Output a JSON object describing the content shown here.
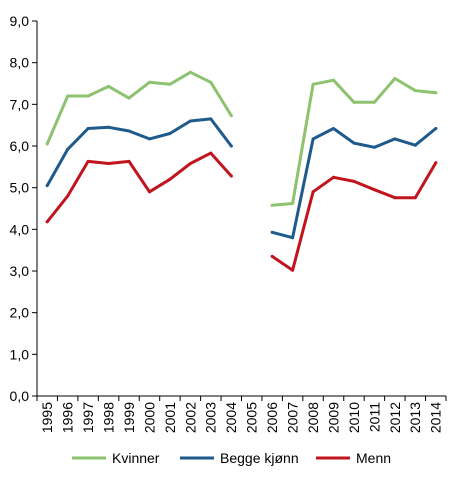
{
  "chart_data": {
    "type": "line",
    "x": [
      "1995",
      "1996",
      "1997",
      "1998",
      "1999",
      "2000",
      "2001",
      "2002",
      "2003",
      "2004",
      "2005",
      "2006",
      "2007",
      "2008",
      "2009",
      "2010",
      "2011",
      "2012",
      "2013",
      "2014"
    ],
    "ylim": [
      0,
      9
    ],
    "yticks": [
      "0,0",
      "1,0",
      "2,0",
      "3,0",
      "4,0",
      "5,0",
      "6,0",
      "7,0",
      "8,0",
      "9,0"
    ],
    "grid": false,
    "legend_position": "bottom",
    "series": [
      {
        "name": "Kvinner",
        "color": "#8dc26e",
        "values": [
          6.05,
          7.2,
          7.2,
          7.43,
          7.15,
          7.53,
          7.48,
          7.77,
          7.53,
          6.73,
          null,
          4.58,
          4.62,
          7.48,
          7.58,
          7.05,
          7.05,
          7.62,
          7.33,
          7.28
        ]
      },
      {
        "name": "Begge kjønn",
        "color": "#1f5a8c",
        "values": [
          5.05,
          5.92,
          6.42,
          6.45,
          6.36,
          6.17,
          6.3,
          6.6,
          6.65,
          6.0,
          null,
          3.93,
          3.8,
          6.17,
          6.42,
          6.07,
          5.97,
          6.17,
          6.02,
          6.42
        ]
      },
      {
        "name": "Menn",
        "color": "#c0141e",
        "values": [
          4.18,
          4.8,
          5.63,
          5.58,
          5.63,
          4.9,
          5.2,
          5.58,
          5.83,
          5.28,
          null,
          3.35,
          3.02,
          4.9,
          5.25,
          5.15,
          4.95,
          4.76,
          4.76,
          5.6
        ]
      }
    ]
  }
}
